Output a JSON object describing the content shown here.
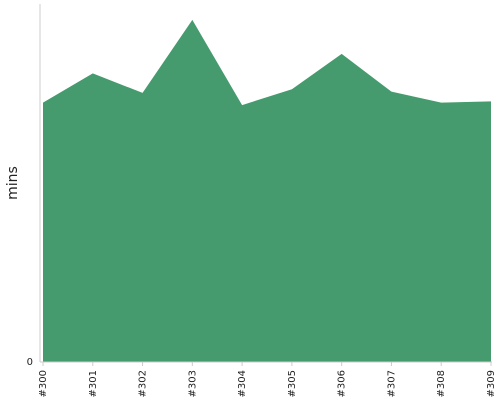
{
  "chart_data": {
    "type": "area",
    "title": "",
    "xlabel": "",
    "ylabel": "mins",
    "x": [
      "#300",
      "#301",
      "#302",
      "#303",
      "#304",
      "#305",
      "#306",
      "#307",
      "#308",
      "#309"
    ],
    "series": [
      {
        "values": [
          10.65,
          11.85,
          11.05,
          14.05,
          10.55,
          11.2,
          12.65,
          11.1,
          10.65,
          10.7
        ]
      }
    ],
    "y_tick_labels": [
      "0"
    ],
    "ylim": [
      0,
      14.7
    ],
    "grid": false,
    "legend": "none",
    "colors": {
      "area_fill": "#459b6d",
      "axis": "#cccccc",
      "text": "#222222"
    }
  }
}
